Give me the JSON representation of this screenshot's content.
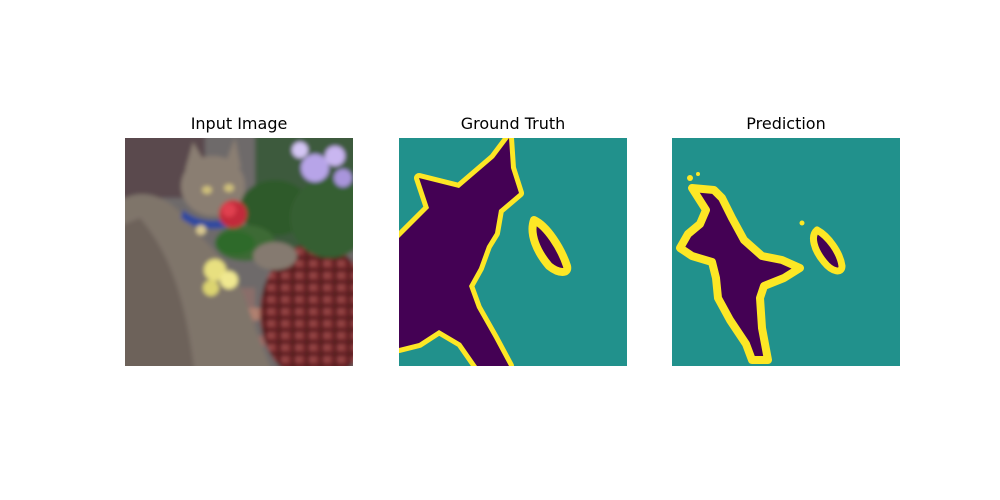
{
  "figure": {
    "panels": [
      {
        "title": "Input Image"
      },
      {
        "title": "Ground Truth"
      },
      {
        "title": "Prediction"
      }
    ]
  },
  "colors": {
    "background_class": "#21918c",
    "foreground_class": "#440154",
    "boundary_class": "#fde725"
  },
  "icons": {
    "input": "cat-photo-image",
    "ground_truth": "segmentation-mask",
    "prediction": "segmentation-mask"
  }
}
